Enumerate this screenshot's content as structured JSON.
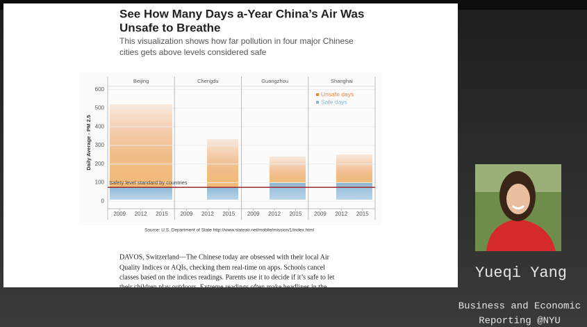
{
  "article": {
    "title_lines": [
      "See How Many Days a-Year China’s Air Was",
      "Unsafe to Breathe"
    ],
    "subtitle_lines": [
      "This visualization shows how far pollution in four major Chinese",
      "cities gets above levels considered safe"
    ],
    "source": "Source: U.S. Department of State http://www.stateair.net/mobile/mission/1/index.html",
    "lines": [
      "DAVOS, Switzerland—The Chinese today are obsessed with their local Air",
      "Quality Indices or AQIs, checking them real-time on apps. Schools cancel",
      "classes based on the indices readings. Parents use it to decide if it’s safe to let",
      "their children play outdoors. Extreme readings often make headlines in the"
    ]
  },
  "chart": {
    "panels": [
      "Beijing",
      "Chengdu",
      "Guangzhou",
      "Shanghai"
    ],
    "y_label": "Daily Average - PM 2.5",
    "ylim": [
      -40,
      670
    ],
    "yticks": [
      0,
      100,
      200,
      300,
      400,
      500,
      600
    ],
    "xlim": [
      2007.3,
      2016.8
    ],
    "xticks": [
      2009,
      2012,
      2015
    ],
    "threshold": {
      "value": 75,
      "label": "Safety level standard by countries",
      "color": "#9e2a2f"
    },
    "legend": [
      {
        "name": "Unsafe days",
        "color": "#e8863a"
      },
      {
        "name": "Safe days",
        "color": "#86b6d6"
      }
    ]
  },
  "presenter": {
    "name": "Yueqi Yang",
    "affiliation": [
      "Business and Economic",
      "Reporting @NYU"
    ]
  }
}
